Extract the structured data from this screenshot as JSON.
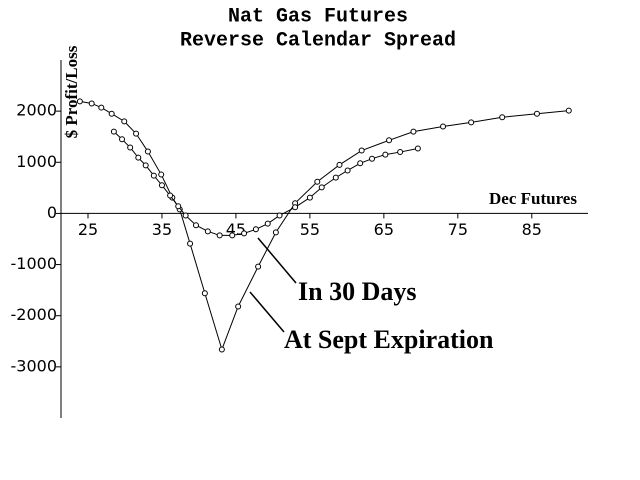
{
  "chart_data": {
    "type": "line",
    "title": "Nat Gas Futures",
    "subtitle": "Reverse Calendar Spread",
    "x_label": "Dec Futures",
    "y_label": "$ Profit/Loss",
    "annotations": [
      "In 30 Days",
      "At Sept Expiration"
    ],
    "xlim": [
      21.35,
      92.6
    ],
    "ylim": [
      -4000,
      3000
    ],
    "xticks": [
      25,
      35,
      45,
      55,
      65,
      75,
      85
    ],
    "yticks": [
      -3000,
      -2000,
      -1000,
      0,
      1000,
      2000
    ],
    "series": [
      {
        "color": "#000000",
        "x": [
          23.9,
          25.5,
          26.8,
          28.2,
          29.9,
          31.5,
          33.1,
          34.9,
          36.4,
          37.4,
          38.8,
          40.8,
          43.1,
          45.3,
          48.0,
          50.4,
          53.0,
          56.0,
          59.0,
          62.0,
          65.7,
          69.0,
          73.0,
          76.8,
          81.0,
          85.7,
          90.0
        ],
        "values": [
          2190,
          2150,
          2070,
          1950,
          1800,
          1560,
          1210,
          760,
          310,
          80,
          -590,
          -1560,
          -2660,
          -1820,
          -1040,
          -370,
          200,
          620,
          950,
          1230,
          1430,
          1600,
          1700,
          1780,
          1880,
          1950,
          2010
        ]
      },
      {
        "color": "#000000",
        "x": [
          28.5,
          29.6,
          30.7,
          31.8,
          32.8,
          33.9,
          35.0,
          36.1,
          37.2,
          38.2,
          39.6,
          41.2,
          42.8,
          44.5,
          46.1,
          47.7,
          49.3,
          50.9,
          53.0,
          55.0,
          56.6,
          58.5,
          60.1,
          61.8,
          63.4,
          65.2,
          67.2,
          69.6
        ],
        "values": [
          1600,
          1450,
          1290,
          1090,
          940,
          740,
          550,
          350,
          140,
          -40,
          -230,
          -350,
          -430,
          -430,
          -390,
          -310,
          -200,
          -40,
          120,
          310,
          510,
          700,
          840,
          980,
          1070,
          1150,
          1200,
          1270
        ]
      }
    ]
  }
}
